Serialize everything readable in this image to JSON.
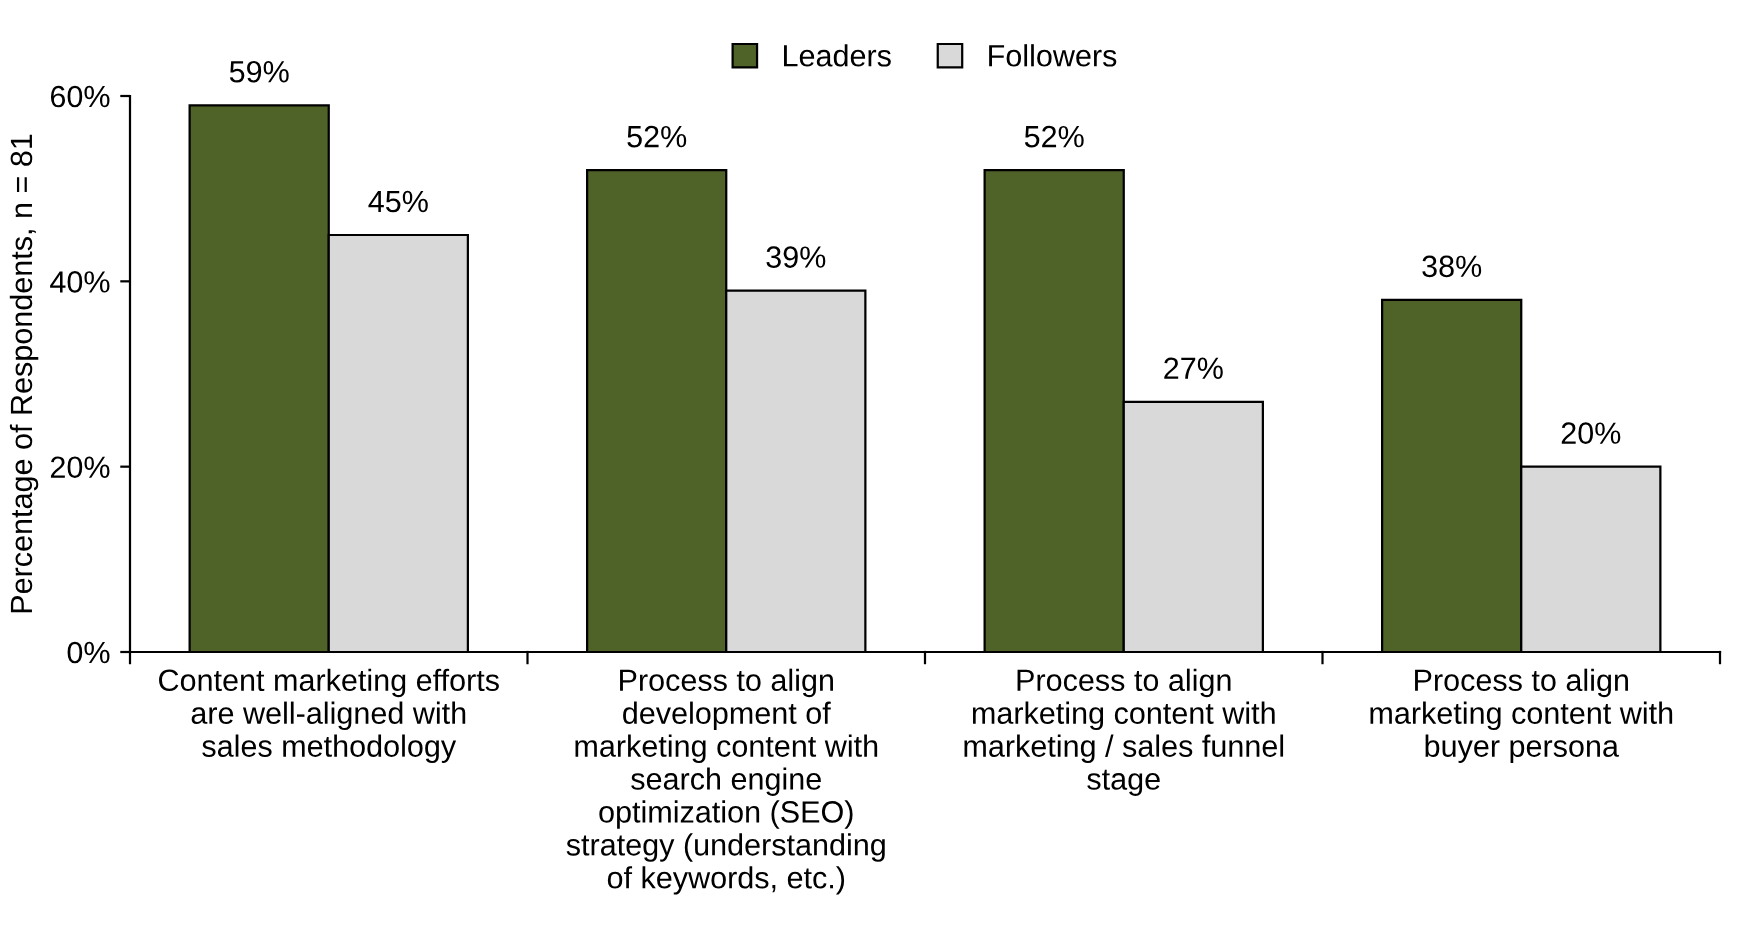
{
  "chart_data": {
    "type": "bar",
    "ylabel": "Percentage of Respondents, n = 81",
    "categories": [
      "Content marketing efforts\nare well-aligned with\nsales methodology",
      "Process to align\ndevelopment of\nmarketing content with\nsearch engine\noptimization (SEO)\nstrategy (understanding\nof keywords, etc.)",
      "Process to align\nmarketing content with\nmarketing / sales funnel\nstage",
      "Process to align\nmarketing content with\nbuyer persona"
    ],
    "series": [
      {
        "name": "Leaders",
        "color": "#4f6228",
        "values": [
          59,
          52,
          52,
          38
        ],
        "value_labels": [
          "59%",
          "52%",
          "52%",
          "38%"
        ]
      },
      {
        "name": "Followers",
        "color": "#d9d9d9",
        "values": [
          45,
          39,
          27,
          20
        ],
        "value_labels": [
          "45%",
          "39%",
          "27%",
          "20%"
        ]
      }
    ],
    "ylim": [
      0,
      60
    ],
    "yticks": [
      {
        "value": 0,
        "label": "0%"
      },
      {
        "value": 20,
        "label": "20%"
      },
      {
        "value": 40,
        "label": "40%"
      },
      {
        "value": 60,
        "label": "60%"
      }
    ],
    "legend": "top",
    "grid": false
  }
}
